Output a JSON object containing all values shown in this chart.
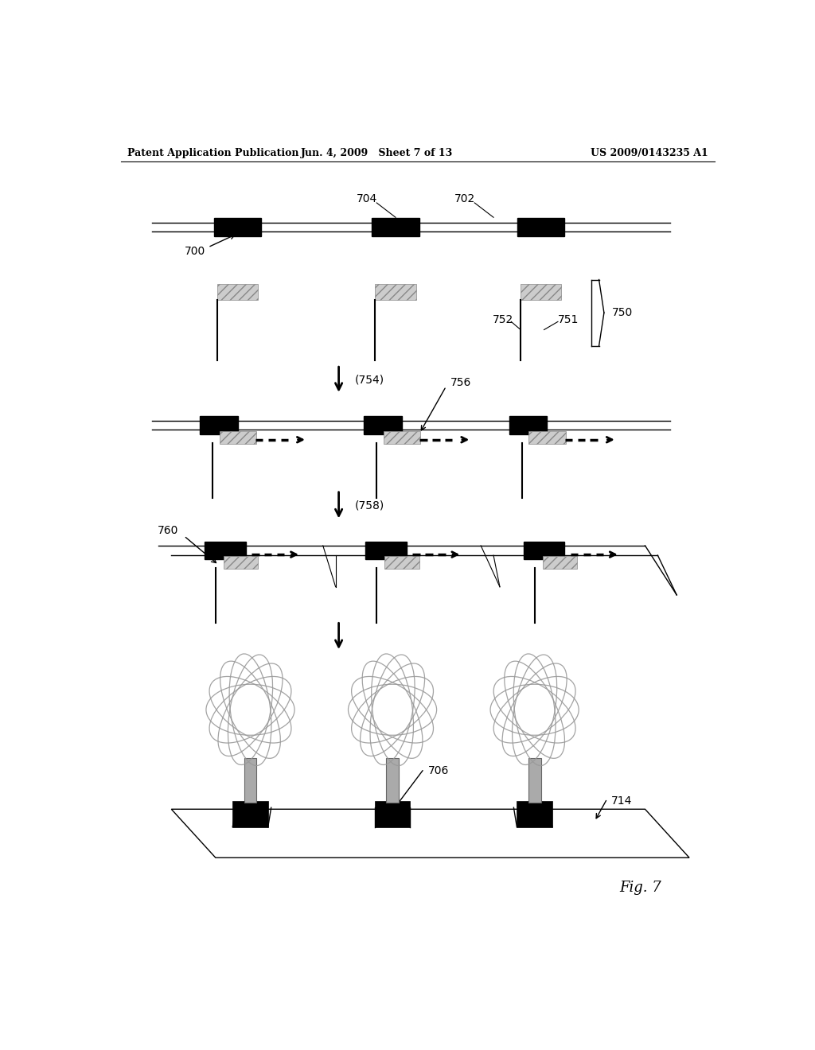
{
  "bg_color": "#ffffff",
  "header_left": "Patent Application Publication",
  "header_mid": "Jun. 4, 2009   Sheet 7 of 13",
  "header_right": "US 2009/0143235 A1",
  "fig_label": "Fig. 7"
}
